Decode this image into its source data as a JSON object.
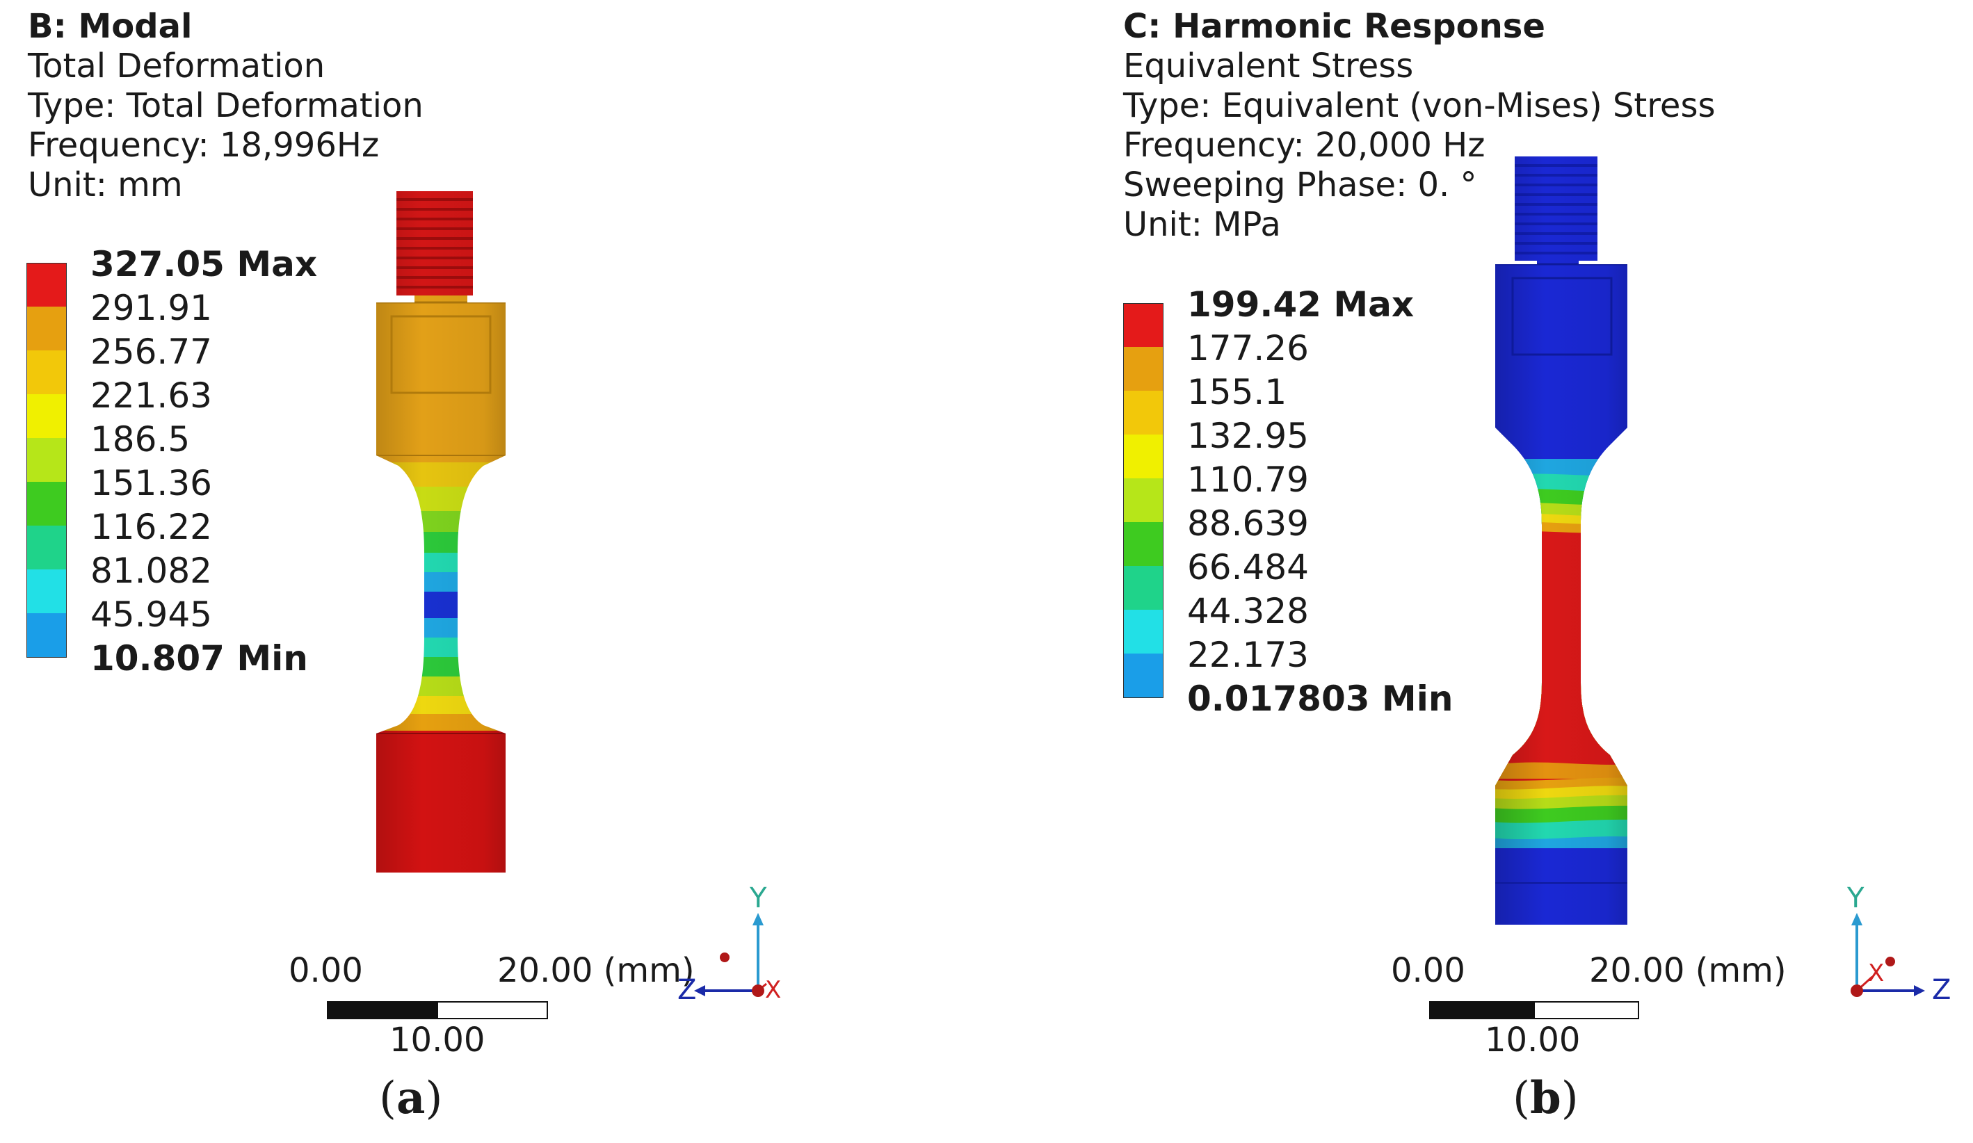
{
  "panel_a": {
    "title": "B: Modal",
    "result": "Total Deformation",
    "type_line": "Type: Total Deformation",
    "frequency_line": "Frequency: 18,996Hz",
    "unit_line": "Unit: mm",
    "legend": [
      {
        "label": "327.05 Max",
        "color": "#e41a1a",
        "extreme": true
      },
      {
        "label": "291.91",
        "color": "#e6a010"
      },
      {
        "label": "256.77",
        "color": "#f2c80a"
      },
      {
        "label": "221.63",
        "color": "#f0f000"
      },
      {
        "label": "186.5",
        "color": "#b6e619"
      },
      {
        "label": "151.36",
        "color": "#3ecb20"
      },
      {
        "label": "116.22",
        "color": "#1fd38a"
      },
      {
        "label": "81.082",
        "color": "#22e0e6"
      },
      {
        "label": "45.945",
        "color": "#1a9ee8"
      },
      {
        "label": "10.807 Min",
        "color": "#1020d8",
        "extreme": true
      }
    ],
    "scale": {
      "left": "0.00",
      "right": "20.00 (mm)",
      "mid": "10.00"
    },
    "axes": {
      "y": "Y",
      "horizontal": "Z",
      "depth": "X"
    },
    "caption_letter": "a"
  },
  "panel_b": {
    "title": "C: Harmonic Response",
    "result": "Equivalent Stress",
    "type_line": "Type: Equivalent (von-Mises) Stress",
    "frequency_line": "Frequency: 20,000 Hz",
    "phase_line": "Sweeping Phase: 0. °",
    "unit_line": "Unit: MPa",
    "legend": [
      {
        "label": "199.42 Max",
        "color": "#e41a1a",
        "extreme": true
      },
      {
        "label": "177.26",
        "color": "#e6a010"
      },
      {
        "label": "155.1",
        "color": "#f2c80a"
      },
      {
        "label": "132.95",
        "color": "#f0f000"
      },
      {
        "label": "110.79",
        "color": "#b6e619"
      },
      {
        "label": "88.639",
        "color": "#3ecb20"
      },
      {
        "label": "66.484",
        "color": "#1fd38a"
      },
      {
        "label": "44.328",
        "color": "#22e0e6"
      },
      {
        "label": "22.173",
        "color": "#1a9ee8"
      },
      {
        "label": "0.017803 Min",
        "color": "#1020d8",
        "extreme": true
      }
    ],
    "scale": {
      "left": "0.00",
      "right": "20.00 (mm)",
      "mid": "10.00"
    },
    "axes": {
      "y": "Y",
      "horizontal": "Z",
      "depth": "X"
    },
    "caption_letter": "b"
  }
}
